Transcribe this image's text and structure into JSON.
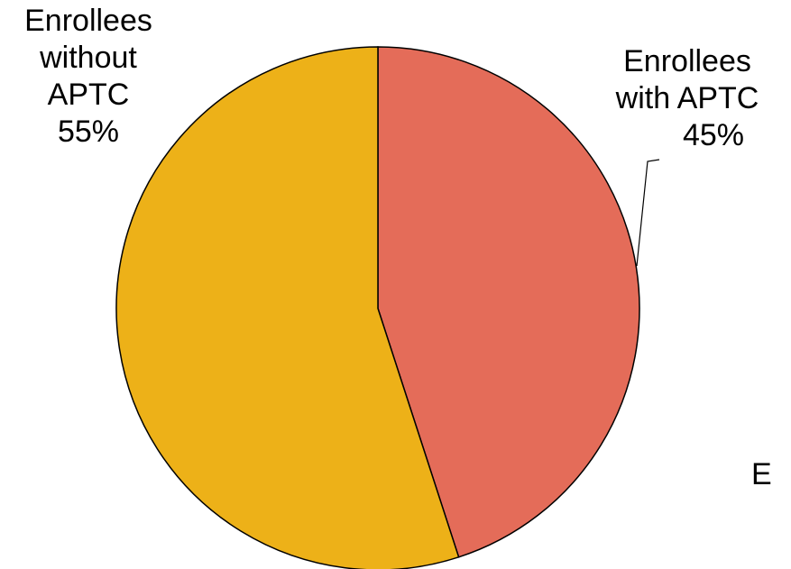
{
  "chart_data": {
    "type": "pie",
    "title": "",
    "slices": [
      {
        "label_line1": "Enrollees",
        "label_line2": "with APTC",
        "percent": "45%",
        "value": 45,
        "color": "#E46C59"
      },
      {
        "label_line1": "Enrollees",
        "label_line2": "without",
        "label_line3": "APTC",
        "percent": "55%",
        "value": 55,
        "color": "#EDB118"
      }
    ],
    "edge_color": "#000000"
  },
  "clipped_text": "E"
}
